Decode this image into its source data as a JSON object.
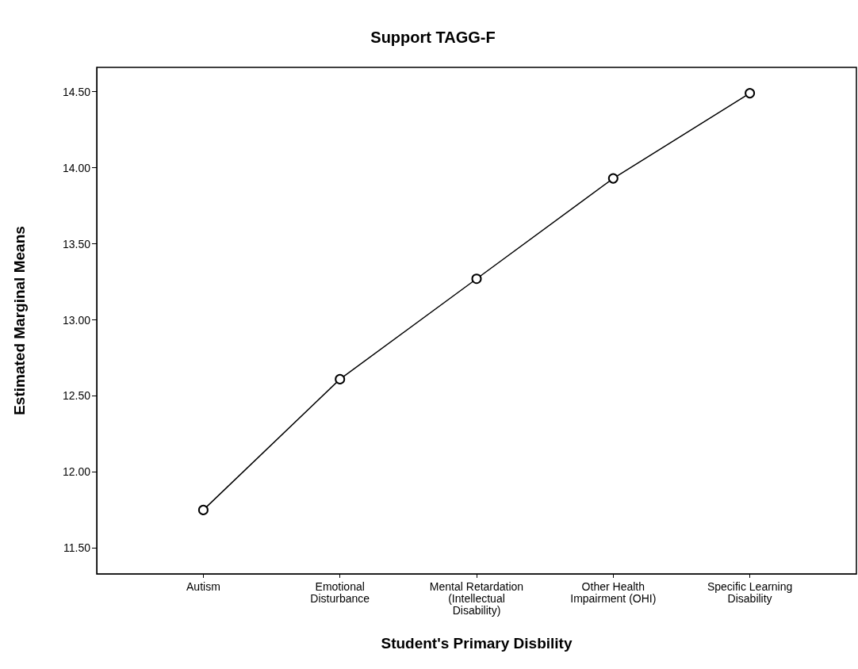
{
  "chart_data": {
    "type": "line",
    "title": "Support TAGG-F",
    "xlabel": "Student's Primary Disbility",
    "ylabel": "Estimated Marginal Means",
    "categories": [
      "Autism",
      "Emotional\nDisturbance",
      "Mental Retardation\n(Intellectual\nDisability)",
      "Other Health\nImpairment (OHI)",
      "Specific Learning\nDisability"
    ],
    "series": [
      {
        "color": "#000000",
        "values": [
          11.75,
          12.61,
          13.27,
          13.93,
          14.49
        ]
      }
    ],
    "ylim": [
      11.33,
      14.66
    ],
    "yticks": [
      {
        "value": 11.5,
        "label": "11.50"
      },
      {
        "value": 12,
        "label": "12.00"
      },
      {
        "value": 12.5,
        "label": "12.50"
      },
      {
        "value": 13,
        "label": "13.00"
      },
      {
        "value": 13.5,
        "label": "13.50"
      },
      {
        "value": 14,
        "label": "14.00"
      },
      {
        "value": 14.5,
        "label": "14.50"
      }
    ],
    "marker": "circle",
    "line_style": "solid",
    "grid": false
  }
}
